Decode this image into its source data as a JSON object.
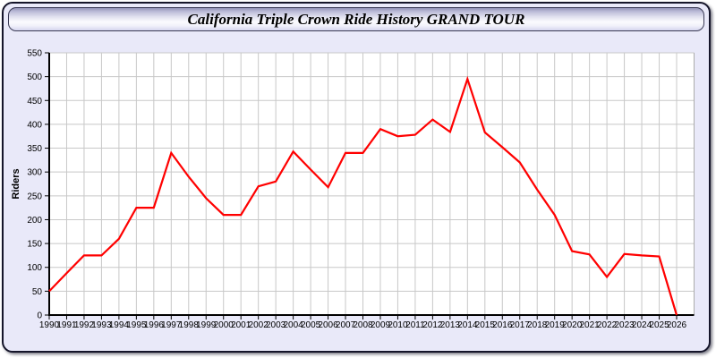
{
  "window": {
    "title": "California Triple Crown Ride History GRAND TOUR"
  },
  "colors": {
    "line": "#FF0000",
    "panel_bg": "#E9E9F9",
    "plot_bg": "#FFFFFF",
    "grid": "#C8C8C8",
    "plot_right_border": "#ABABAB",
    "axis": "#000000",
    "tick_label": "#000000"
  },
  "chart_data": {
    "type": "line",
    "title": "California Triple Crown Ride History GRAND TOUR",
    "xlabel": "",
    "ylabel": "Riders",
    "ylim": [
      0,
      550
    ],
    "ytick_step": 50,
    "grid": true,
    "legend": "none",
    "x": [
      1990,
      1991,
      1992,
      1993,
      1994,
      1995,
      1996,
      1997,
      1998,
      1999,
      2000,
      2001,
      2002,
      2003,
      2004,
      2005,
      2006,
      2007,
      2008,
      2009,
      2010,
      2011,
      2012,
      2013,
      2014,
      2015,
      2016,
      2017,
      2018,
      2019,
      2020,
      2021,
      2022,
      2023,
      2024,
      2025,
      2026
    ],
    "series": [
      {
        "name": "Riders",
        "values": [
          50,
          88,
          125,
          125,
          160,
          225,
          225,
          340,
          290,
          245,
          210,
          210,
          270,
          280,
          343,
          305,
          268,
          340,
          340,
          390,
          375,
          378,
          410,
          384,
          495,
          383,
          352,
          320,
          263,
          210,
          134,
          127,
          80,
          128,
          125,
          123,
          0
        ]
      }
    ]
  }
}
